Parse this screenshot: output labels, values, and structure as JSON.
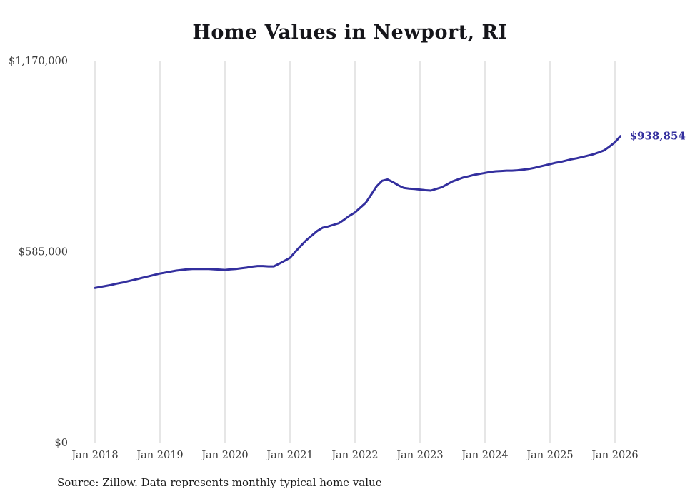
{
  "title": "Home Values in Newport, RI",
  "source_note": "Source: Zillow. Data represents monthly typical home value",
  "colors": {
    "line": "#332f9e",
    "grid": "#cccccc",
    "axis_text": "#3b3b3b",
    "title_text": "#15151a"
  },
  "chart_data": {
    "type": "line",
    "title": "Home Values in Newport, RI",
    "xlabel": "",
    "ylabel": "",
    "ylim": [
      0,
      1170000
    ],
    "grid": "vertical-only",
    "legend": "none",
    "y_ticks": [
      {
        "value": 0,
        "label": "$0"
      },
      {
        "value": 585000,
        "label": "$585,000"
      },
      {
        "value": 1170000,
        "label": "$1,170,000"
      }
    ],
    "x_ticks": [
      "Jan 2018",
      "Jan 2019",
      "Jan 2020",
      "Jan 2021",
      "Jan 2022",
      "Jan 2023",
      "Jan 2024",
      "Jan 2025",
      "Jan 2026"
    ],
    "final_value": 938854,
    "final_value_label": "$938,854",
    "series": [
      {
        "name": "Monthly typical home value",
        "x": [
          "2018-01",
          "2018-02",
          "2018-03",
          "2018-04",
          "2018-05",
          "2018-06",
          "2018-07",
          "2018-08",
          "2018-09",
          "2018-10",
          "2018-11",
          "2018-12",
          "2019-01",
          "2019-02",
          "2019-03",
          "2019-04",
          "2019-05",
          "2019-06",
          "2019-07",
          "2019-08",
          "2019-09",
          "2019-10",
          "2019-11",
          "2019-12",
          "2020-01",
          "2020-02",
          "2020-03",
          "2020-04",
          "2020-05",
          "2020-06",
          "2020-07",
          "2020-08",
          "2020-09",
          "2020-10",
          "2020-11",
          "2020-12",
          "2021-01",
          "2021-02",
          "2021-03",
          "2021-04",
          "2021-05",
          "2021-06",
          "2021-07",
          "2021-08",
          "2021-09",
          "2021-10",
          "2021-11",
          "2021-12",
          "2022-01",
          "2022-02",
          "2022-03",
          "2022-04",
          "2022-05",
          "2022-06",
          "2022-07",
          "2022-08",
          "2022-09",
          "2022-10",
          "2022-11",
          "2022-12",
          "2023-01",
          "2023-02",
          "2023-03",
          "2023-04",
          "2023-05",
          "2023-06",
          "2023-07",
          "2023-08",
          "2023-09",
          "2023-10",
          "2023-11",
          "2023-12",
          "2024-01",
          "2024-02",
          "2024-03",
          "2024-04",
          "2024-05",
          "2024-06",
          "2024-07",
          "2024-08",
          "2024-09",
          "2024-10",
          "2024-11",
          "2024-12",
          "2025-01",
          "2025-02",
          "2025-03",
          "2025-04",
          "2025-05",
          "2025-06",
          "2025-07",
          "2025-08",
          "2025-09",
          "2025-10",
          "2025-11",
          "2025-12",
          "2026-01",
          "2026-02"
        ],
        "values": [
          474000,
          477000,
          480000,
          483000,
          487000,
          490000,
          494000,
          498000,
          502000,
          506000,
          510000,
          514000,
          518000,
          521000,
          524000,
          527000,
          529000,
          531000,
          532000,
          532000,
          532000,
          532000,
          531000,
          530000,
          529000,
          531000,
          532000,
          534000,
          536000,
          539000,
          541000,
          541000,
          540000,
          540000,
          548000,
          557000,
          566000,
          585000,
          603000,
          620000,
          634000,
          648000,
          658000,
          662000,
          667000,
          672000,
          683000,
          695000,
          705000,
          720000,
          735000,
          760000,
          785000,
          802000,
          806000,
          798000,
          788000,
          780000,
          778000,
          777000,
          775000,
          773000,
          772000,
          777000,
          782000,
          791000,
          800000,
          806000,
          812000,
          816000,
          820000,
          823000,
          826000,
          829000,
          831000,
          832000,
          833000,
          833000,
          834000,
          836000,
          838000,
          841000,
          845000,
          849000,
          853000,
          857000,
          860000,
          864000,
          868000,
          871000,
          875000,
          879000,
          883000,
          889000,
          895000,
          907000,
          920000,
          938854
        ]
      }
    ]
  }
}
